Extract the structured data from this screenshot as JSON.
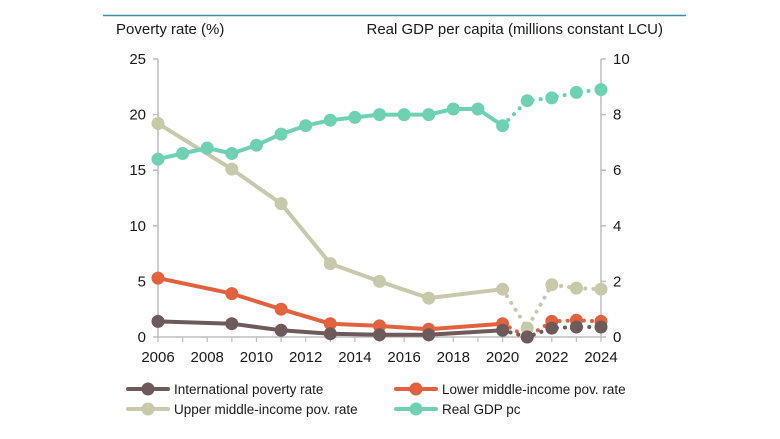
{
  "chart_data": {
    "type": "line",
    "left_axis_title": "Poverty rate (%)",
    "right_axis_title": "Real GDP per capita (millions constant LCU)",
    "y_left": {
      "min": 0,
      "max": 25,
      "ticks": [
        "0",
        "5",
        "10",
        "15",
        "20",
        "25"
      ]
    },
    "y_right": {
      "min": 0,
      "max": 10,
      "ticks": [
        "0",
        "2",
        "4",
        "6",
        "8",
        "10"
      ]
    },
    "x_axis": {
      "min": 2006,
      "max": 2024,
      "ticks": [
        "2006",
        "2008",
        "2010",
        "2012",
        "2014",
        "2016",
        "2018",
        "2020",
        "2022",
        "2024"
      ]
    },
    "grid": false,
    "legend_position": "bottom",
    "dotted_from_year": 2020,
    "series": [
      {
        "name": "Upper middle-income pov. rate",
        "color": "#c8c8aa",
        "axis": "left",
        "points": [
          [
            2006,
            19.2
          ],
          [
            2009,
            15.1
          ],
          [
            2011,
            12.0
          ],
          [
            2013,
            6.6
          ],
          [
            2015,
            5.0
          ],
          [
            2017,
            3.5
          ],
          [
            2020,
            4.3
          ],
          [
            2021,
            0.8
          ],
          [
            2022,
            4.7
          ],
          [
            2023,
            4.4
          ],
          [
            2024,
            4.3
          ]
        ]
      },
      {
        "name": "Lower middle-income pov. rate",
        "color": "#e2623e",
        "axis": "left",
        "points": [
          [
            2006,
            5.3
          ],
          [
            2009,
            3.9
          ],
          [
            2011,
            2.5
          ],
          [
            2013,
            1.2
          ],
          [
            2015,
            1.0
          ],
          [
            2017,
            0.7
          ],
          [
            2020,
            1.2
          ],
          [
            2021,
            0.0
          ],
          [
            2022,
            1.4
          ],
          [
            2023,
            1.5
          ],
          [
            2024,
            1.4
          ]
        ]
      },
      {
        "name": "International poverty rate",
        "color": "#6e5a5a",
        "axis": "left",
        "points": [
          [
            2006,
            1.4
          ],
          [
            2009,
            1.2
          ],
          [
            2011,
            0.6
          ],
          [
            2013,
            0.3
          ],
          [
            2015,
            0.2
          ],
          [
            2017,
            0.2
          ],
          [
            2020,
            0.6
          ],
          [
            2021,
            0.0
          ],
          [
            2022,
            0.8
          ],
          [
            2023,
            0.9
          ],
          [
            2024,
            0.9
          ]
        ]
      },
      {
        "name": "Real GDP pc",
        "color": "#6fd1b4",
        "axis": "right",
        "points": [
          [
            2006,
            6.4
          ],
          [
            2007,
            6.6
          ],
          [
            2008,
            6.8
          ],
          [
            2009,
            6.6
          ],
          [
            2010,
            6.9
          ],
          [
            2011,
            7.3
          ],
          [
            2012,
            7.6
          ],
          [
            2013,
            7.8
          ],
          [
            2014,
            7.9
          ],
          [
            2015,
            8.0
          ],
          [
            2016,
            8.0
          ],
          [
            2017,
            8.0
          ],
          [
            2018,
            8.2
          ],
          [
            2019,
            8.2
          ],
          [
            2020,
            7.6
          ],
          [
            2021,
            8.5
          ],
          [
            2022,
            8.6
          ],
          [
            2023,
            8.8
          ],
          [
            2024,
            8.9
          ]
        ]
      }
    ],
    "legend": [
      {
        "label": "International poverty rate",
        "color": "#6e5a5a"
      },
      {
        "label": "Lower middle-income pov. rate",
        "color": "#e2623e"
      },
      {
        "label": "Upper middle-income pov. rate",
        "color": "#c8c8aa"
      },
      {
        "label": "Real GDP pc",
        "color": "#6fd1b4"
      }
    ],
    "top_rule_color": "#3a8ea8"
  }
}
